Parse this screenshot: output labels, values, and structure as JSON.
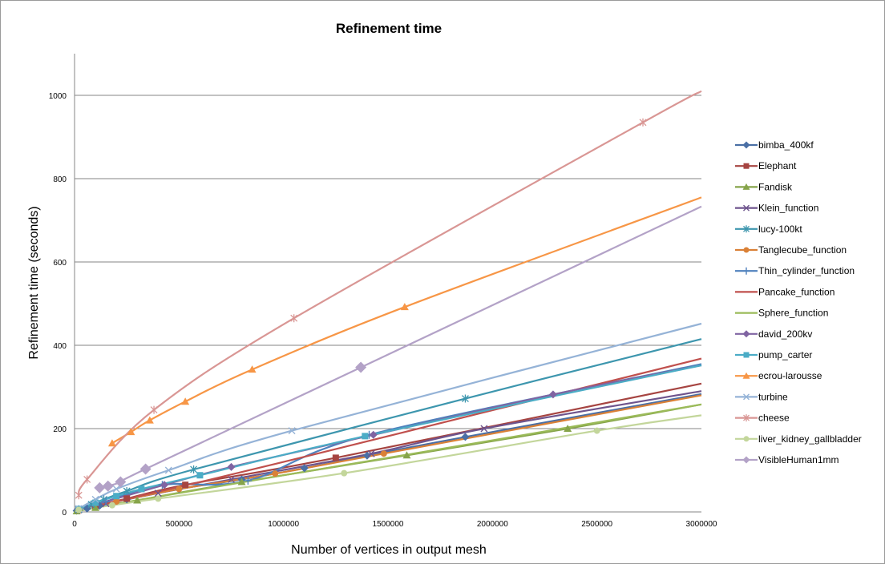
{
  "chart_data": {
    "type": "line",
    "title": "Refinement time",
    "xlabel": "Number of vertices in output mesh",
    "ylabel": "Refinement time (seconds)",
    "xlim": [
      0,
      3000000
    ],
    "ylim": [
      0,
      1100
    ],
    "x_ticks": [
      0,
      500000,
      1000000,
      1500000,
      2000000,
      2500000,
      3000000
    ],
    "y_ticks": [
      0,
      200,
      400,
      600,
      800,
      1000
    ],
    "grid": "horizontal",
    "legend_position": "right",
    "series": [
      {
        "name": "bimba_400kf",
        "color": "#4a6fa5",
        "marker": "diamond",
        "points": [
          [
            10000,
            3
          ],
          [
            60000,
            8
          ],
          [
            120000,
            15
          ],
          [
            250000,
            30
          ],
          [
            500000,
            55
          ],
          [
            800000,
            78
          ],
          [
            1100000,
            105
          ],
          [
            1400000,
            135
          ],
          [
            1870000,
            180
          ],
          [
            3000000,
            283
          ]
        ]
      },
      {
        "name": "Elephant",
        "color": "#a64441",
        "marker": "square",
        "points": [
          [
            20000,
            5
          ],
          [
            100000,
            15
          ],
          [
            250000,
            32
          ],
          [
            530000,
            65
          ],
          [
            1250000,
            130
          ],
          [
            3000000,
            308
          ]
        ]
      },
      {
        "name": "Fandisk",
        "color": "#86a44a",
        "marker": "triangle",
        "points": [
          [
            10000,
            2
          ],
          [
            100000,
            10
          ],
          [
            300000,
            28
          ],
          [
            800000,
            72
          ],
          [
            1590000,
            136
          ],
          [
            2360000,
            200
          ],
          [
            3000000,
            258
          ]
        ]
      },
      {
        "name": "Klein_function",
        "color": "#6e548d",
        "marker": "x",
        "points": [
          [
            20000,
            5
          ],
          [
            150000,
            20
          ],
          [
            400000,
            45
          ],
          [
            750000,
            78
          ],
          [
            1420000,
            140
          ],
          [
            1960000,
            200
          ],
          [
            3000000,
            290
          ]
        ]
      },
      {
        "name": "lucy-100kt",
        "color": "#3d96ae",
        "marker": "asterisk",
        "points": [
          [
            20000,
            6
          ],
          [
            80000,
            18
          ],
          [
            140000,
            30
          ],
          [
            250000,
            50
          ],
          [
            570000,
            102
          ],
          [
            1870000,
            272
          ],
          [
            3000000,
            415
          ]
        ]
      },
      {
        "name": "Tanglecube_function",
        "color": "#da8137",
        "marker": "circle",
        "points": [
          [
            20000,
            5
          ],
          [
            200000,
            25
          ],
          [
            500000,
            55
          ],
          [
            960000,
            92
          ],
          [
            1480000,
            140
          ],
          [
            3000000,
            280
          ]
        ]
      },
      {
        "name": "Thin_cylinder_function",
        "color": "#4f81bd",
        "marker": "plus",
        "points": [
          [
            20000,
            6
          ],
          [
            150000,
            25
          ],
          [
            420000,
            65
          ],
          [
            830000,
            75
          ],
          [
            1410000,
            185
          ],
          [
            3000000,
            355
          ]
        ]
      },
      {
        "name": "Pancake_function",
        "color": "#c0504d",
        "marker": "none",
        "points": [
          [
            20000,
            5
          ],
          [
            500000,
            60
          ],
          [
            1000000,
            120
          ],
          [
            2000000,
            244
          ],
          [
            3000000,
            368
          ]
        ]
      },
      {
        "name": "Sphere_function",
        "color": "#9bbb59",
        "marker": "none",
        "points": [
          [
            20000,
            4
          ],
          [
            500000,
            45
          ],
          [
            1000000,
            88
          ],
          [
            2000000,
            172
          ],
          [
            3000000,
            258
          ]
        ]
      },
      {
        "name": "david_200kv",
        "color": "#8064a2",
        "marker": "diamond",
        "points": [
          [
            20000,
            6
          ],
          [
            430000,
            65
          ],
          [
            750000,
            108
          ],
          [
            1430000,
            185
          ],
          [
            2290000,
            282
          ],
          [
            3000000,
            352
          ]
        ]
      },
      {
        "name": "pump_carter",
        "color": "#4bacc6",
        "marker": "square",
        "points": [
          [
            20000,
            7
          ],
          [
            100000,
            22
          ],
          [
            200000,
            38
          ],
          [
            320000,
            55
          ],
          [
            600000,
            88
          ],
          [
            1390000,
            182
          ],
          [
            3000000,
            352
          ]
        ]
      },
      {
        "name": "ecrou-larousse",
        "color": "#f79646",
        "marker": "triangle",
        "points": [
          [
            180000,
            165
          ],
          [
            270000,
            192
          ],
          [
            360000,
            220
          ],
          [
            530000,
            265
          ],
          [
            850000,
            342
          ],
          [
            1580000,
            492
          ],
          [
            3000000,
            755
          ]
        ]
      },
      {
        "name": "turbine",
        "color": "#95b3d7",
        "marker": "x",
        "points": [
          [
            20000,
            8
          ],
          [
            100000,
            30
          ],
          [
            200000,
            55
          ],
          [
            450000,
            100
          ],
          [
            1040000,
            195
          ],
          [
            3000000,
            452
          ]
        ]
      },
      {
        "name": "cheese",
        "color": "#d99694",
        "marker": "asterisk",
        "points": [
          [
            20000,
            40
          ],
          [
            60000,
            78
          ],
          [
            380000,
            245
          ],
          [
            1050000,
            465
          ],
          [
            2720000,
            935
          ],
          [
            3000000,
            1010
          ]
        ]
      },
      {
        "name": "liver_kidney_gallbladder",
        "color": "#c3d69b",
        "marker": "circle",
        "points": [
          [
            20000,
            5
          ],
          [
            180000,
            16
          ],
          [
            400000,
            32
          ],
          [
            1290000,
            93
          ],
          [
            2500000,
            195
          ],
          [
            3000000,
            232
          ]
        ]
      },
      {
        "name": "VisibleHuman1mm",
        "color": "#b3a2c7",
        "marker": "diamond",
        "points": [
          [
            120000,
            58
          ],
          [
            160000,
            62
          ],
          [
            220000,
            72
          ],
          [
            340000,
            103
          ],
          [
            1370000,
            347
          ],
          [
            3000000,
            733
          ]
        ]
      }
    ]
  }
}
